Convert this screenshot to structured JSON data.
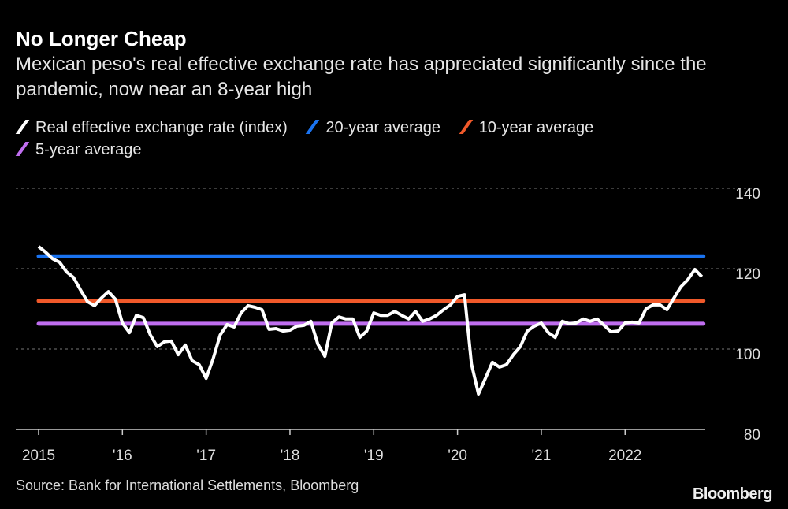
{
  "title": "No Longer Cheap",
  "subtitle": "Mexican peso's real effective exchange rate has appreciated significantly since the pandemic, now near an 8-year high",
  "source": "Source: Bank for International Settlements, Bloomberg",
  "logo": "Bloomberg",
  "chart_data": {
    "type": "line",
    "title": "No Longer Cheap",
    "xlabel": "",
    "ylabel": "",
    "ylim": [
      80,
      140
    ],
    "yticks": [
      80,
      100,
      120,
      140
    ],
    "ytick_labels": [
      "80",
      "100",
      "120",
      "140"
    ],
    "xticks": [
      0,
      12,
      24,
      36,
      48,
      60,
      72,
      84
    ],
    "xtick_labels": [
      "2015",
      "'16",
      "'17",
      "'18",
      "'19",
      "'20",
      "'21",
      "2022"
    ],
    "x_start": "2015-01",
    "frequency": "monthly",
    "grid": true,
    "legend_position": "top-left",
    "series": [
      {
        "name": "Real effective exchange rate (index)",
        "color": "#ffffff",
        "values": [
          125.5,
          124.1,
          122.5,
          121.6,
          119.2,
          117.8,
          114.7,
          111.8,
          110.8,
          112.7,
          114.3,
          112.4,
          106.5,
          104.1,
          108.4,
          107.8,
          103.5,
          100.6,
          101.8,
          102.0,
          98.6,
          101.0,
          97.1,
          96.1,
          92.7,
          97.6,
          103.5,
          106.1,
          105.5,
          109.0,
          110.8,
          110.4,
          109.8,
          104.9,
          105.1,
          104.5,
          104.7,
          105.7,
          105.9,
          106.9,
          101.2,
          98.2,
          106.5,
          108.0,
          107.5,
          107.5,
          102.9,
          104.5,
          109.0,
          108.4,
          108.4,
          109.4,
          108.4,
          107.5,
          109.4,
          106.9,
          107.5,
          108.4,
          109.8,
          111.0,
          113.1,
          113.5,
          96.3,
          88.8,
          92.7,
          96.7,
          95.5,
          96.1,
          98.6,
          100.6,
          104.5,
          105.7,
          106.5,
          104.1,
          102.9,
          106.9,
          106.3,
          106.5,
          107.5,
          106.9,
          107.5,
          105.9,
          104.3,
          104.5,
          106.5,
          106.7,
          106.5,
          110.0,
          111.0,
          111.0,
          109.8,
          112.7,
          115.5,
          117.3,
          119.8,
          118.0
        ]
      },
      {
        "name": "20-year average",
        "color": "#1a73f0",
        "value": 123.1
      },
      {
        "name": "10-year average",
        "color": "#f0592a",
        "value": 112.0
      },
      {
        "name": "5-year average",
        "color": "#c06ef0",
        "value": 106.3
      }
    ]
  }
}
